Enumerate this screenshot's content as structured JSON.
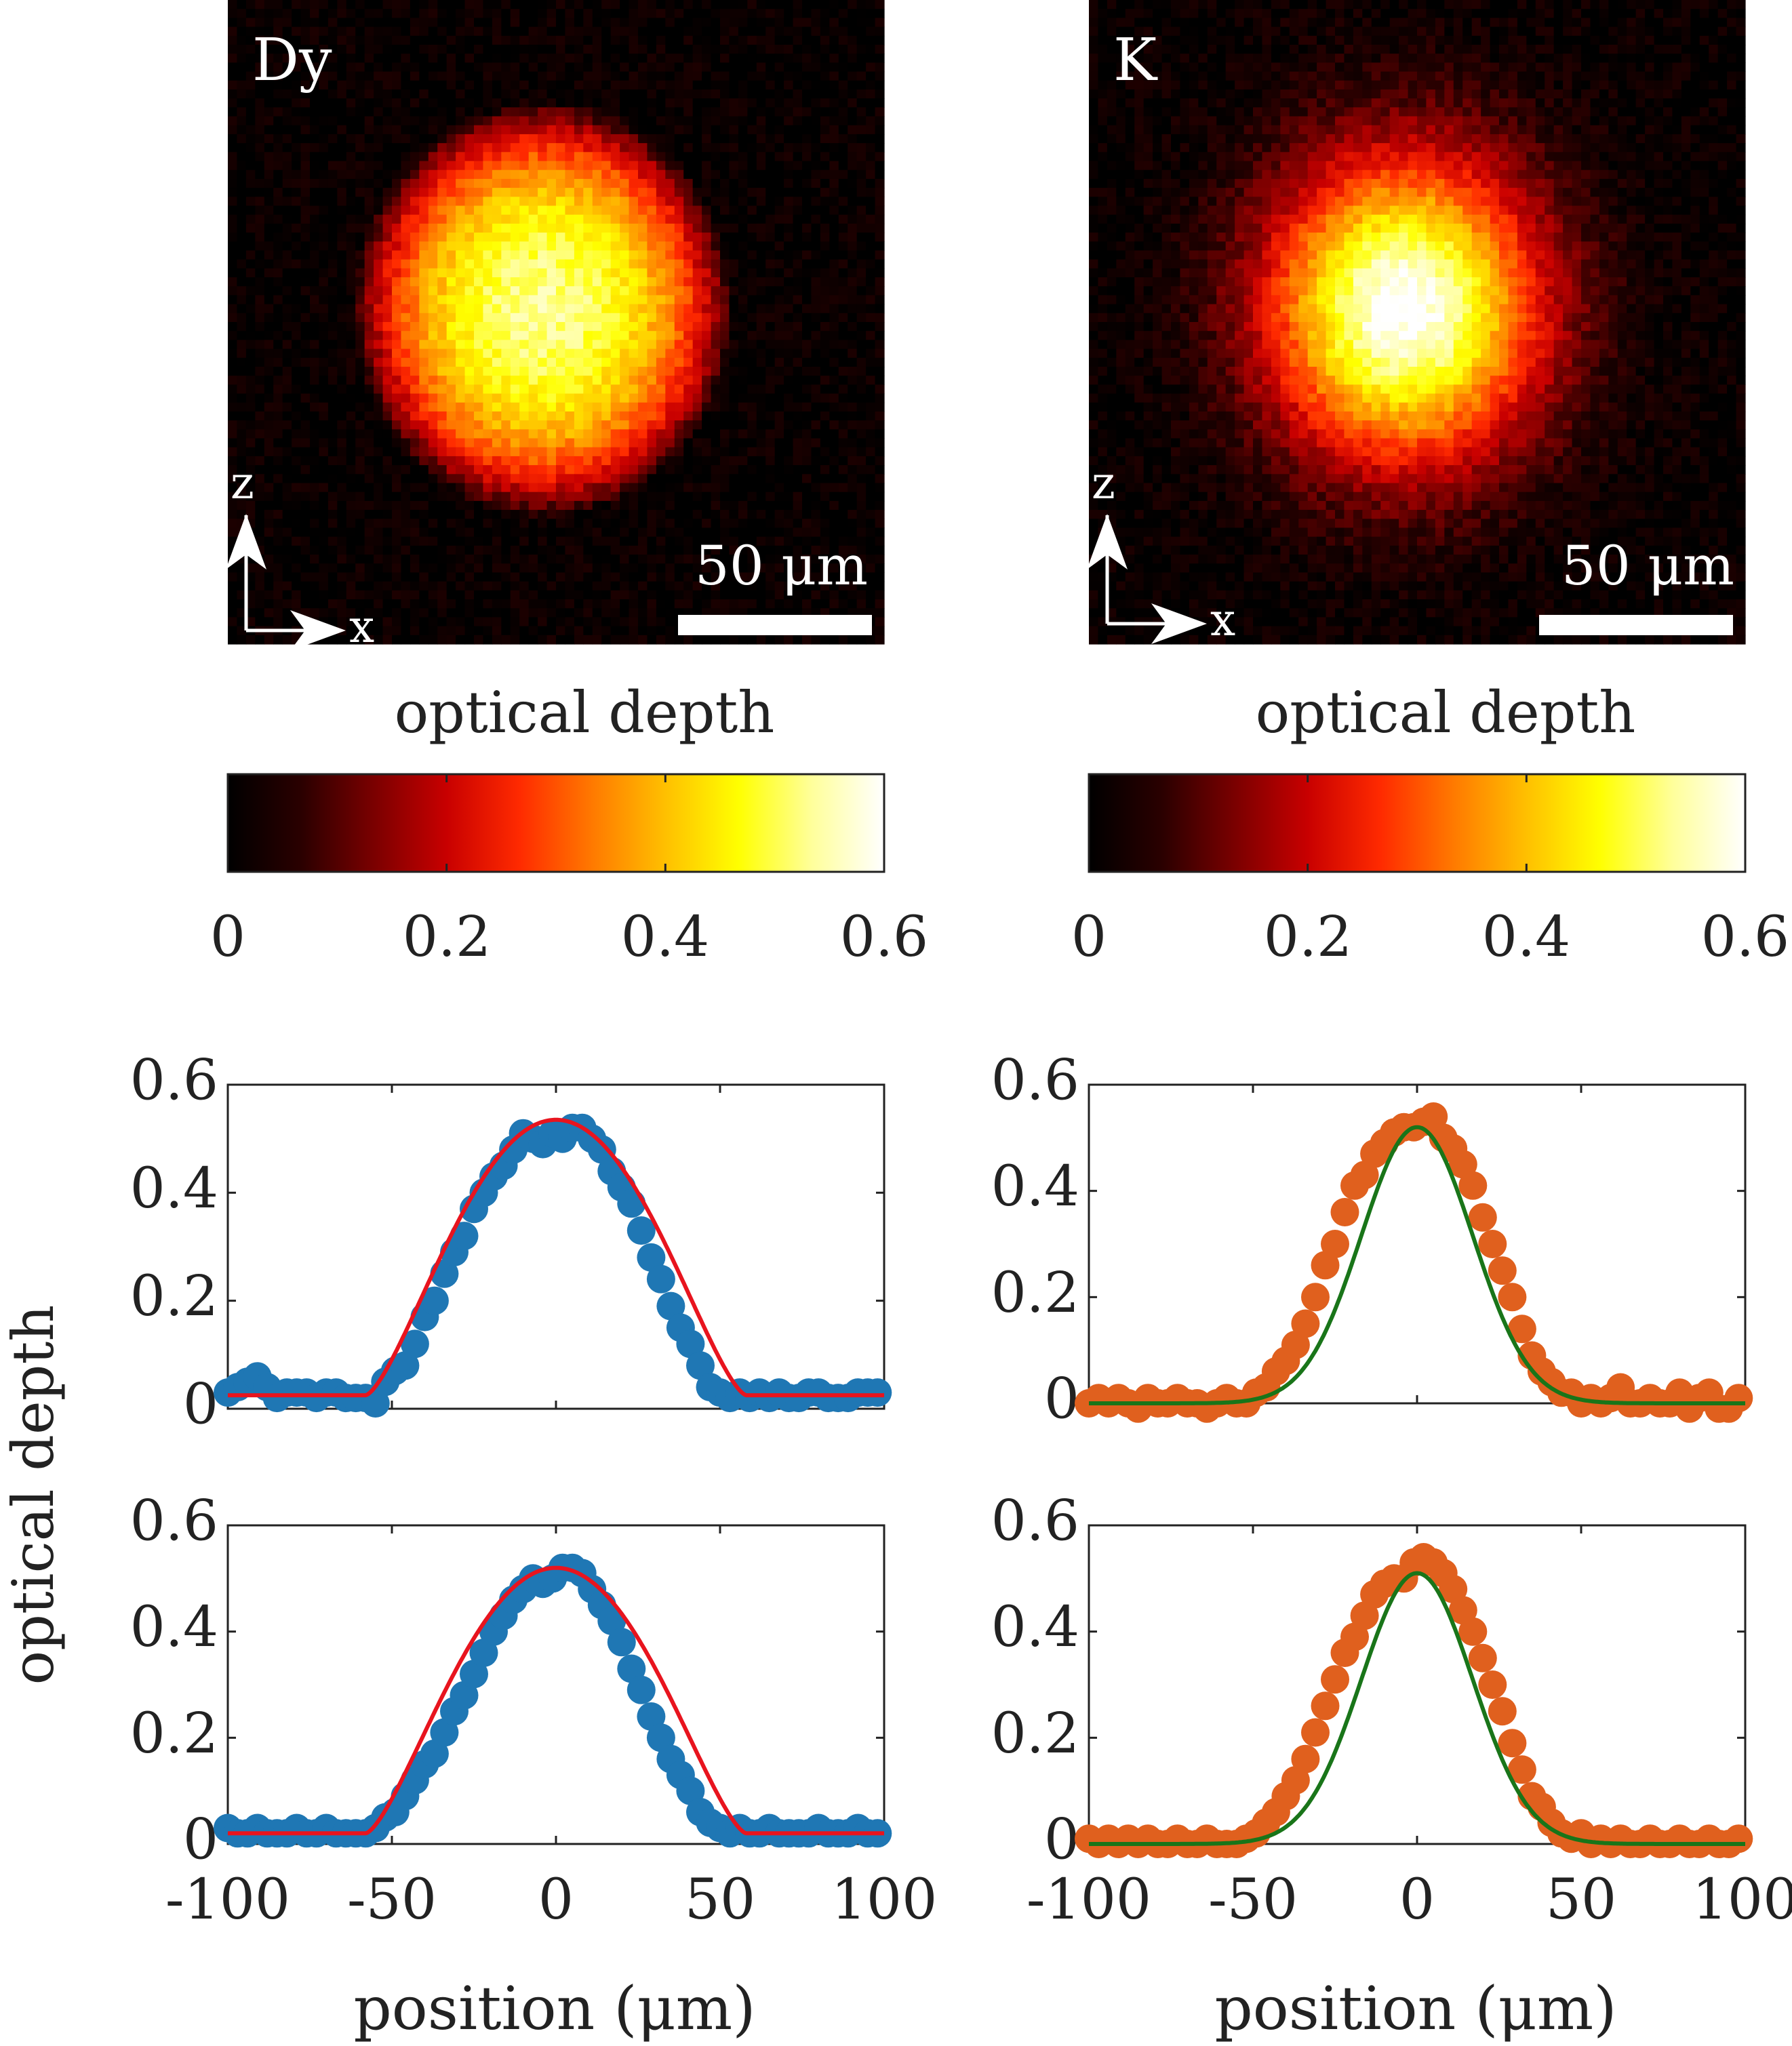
{
  "figure": {
    "y_shared_label": "optical depth",
    "x_shared_label": "position (μm)"
  },
  "colormap_stops": [
    "#000000",
    "#2a0000",
    "#7a0000",
    "#c80000",
    "#ff2a00",
    "#ff7a00",
    "#ffc000",
    "#ffff00",
    "#ffff9a",
    "#ffffff"
  ],
  "images": [
    {
      "species": "Dy",
      "peak_od": 0.52,
      "cloud_center": [
        0.48,
        0.48
      ],
      "cloud_sigma": [
        0.18,
        0.2
      ],
      "cloud_flat_top": true,
      "axis_z_label": "z",
      "axis_x_label": "x",
      "scalebar_label": "50 μm",
      "colorbar": {
        "title": "optical depth",
        "ticks": [
          "0",
          "0.2",
          "0.4",
          "0.6"
        ],
        "range": [
          0,
          0.6
        ]
      }
    },
    {
      "species": "K",
      "peak_od": 0.6,
      "cloud_center": [
        0.48,
        0.48
      ],
      "cloud_sigma": [
        0.14,
        0.16
      ],
      "cloud_flat_top": false,
      "axis_z_label": "z",
      "axis_x_label": "x",
      "scalebar_label": "50 μm",
      "colorbar": {
        "title": "optical depth",
        "ticks": [
          "0",
          "0.2",
          "0.4",
          "0.6"
        ],
        "range": [
          0,
          0.6
        ]
      }
    }
  ],
  "chart_data": [
    {
      "type": "scatter",
      "panel": "Dy x-profile",
      "xlim": [
        -100,
        100
      ],
      "ylim": [
        0,
        0.6
      ],
      "xticks": [
        "-100",
        "-50",
        "0",
        "50",
        "100"
      ],
      "yticks": [
        "0",
        "0.2",
        "0.4",
        "0.6"
      ],
      "xlabel": "",
      "ylabel": "",
      "marker_color": "#1f77b4",
      "fit_color": "#e8141e",
      "fit": {
        "model": "flat-top",
        "amplitude": 0.51,
        "radius": 58,
        "offset": 0.025
      },
      "x": [
        -100,
        -97,
        -94,
        -91,
        -88,
        -85,
        -82,
        -79,
        -76,
        -73,
        -70,
        -67,
        -64,
        -61,
        -58,
        -55,
        -52,
        -49,
        -46,
        -43,
        -40,
        -37,
        -34,
        -31,
        -28,
        -25,
        -22,
        -19,
        -16,
        -13,
        -10,
        -7,
        -4,
        -1,
        2,
        5,
        8,
        11,
        14,
        17,
        20,
        23,
        26,
        29,
        32,
        35,
        38,
        41,
        44,
        47,
        50,
        53,
        56,
        59,
        62,
        65,
        68,
        71,
        74,
        77,
        80,
        83,
        86,
        89,
        92,
        95,
        98
      ],
      "y": [
        0.03,
        0.04,
        0.05,
        0.06,
        0.04,
        0.02,
        0.03,
        0.03,
        0.03,
        0.02,
        0.03,
        0.03,
        0.02,
        0.02,
        0.02,
        0.01,
        0.05,
        0.07,
        0.08,
        0.12,
        0.17,
        0.2,
        0.25,
        0.29,
        0.32,
        0.37,
        0.4,
        0.43,
        0.45,
        0.48,
        0.51,
        0.5,
        0.49,
        0.51,
        0.5,
        0.52,
        0.52,
        0.5,
        0.48,
        0.44,
        0.41,
        0.38,
        0.33,
        0.28,
        0.24,
        0.19,
        0.15,
        0.12,
        0.08,
        0.04,
        0.03,
        0.02,
        0.03,
        0.02,
        0.03,
        0.02,
        0.03,
        0.02,
        0.02,
        0.03,
        0.03,
        0.02,
        0.02,
        0.02,
        0.03,
        0.03,
        0.03
      ]
    },
    {
      "type": "scatter",
      "panel": "K x-profile",
      "xlim": [
        -100,
        100
      ],
      "ylim": [
        0,
        0.6
      ],
      "xticks": [
        "-100",
        "-50",
        "0",
        "50",
        "100"
      ],
      "yticks": [
        "0",
        "0.2",
        "0.4",
        "0.6"
      ],
      "xlabel": "",
      "ylabel": "",
      "marker_color": "#e0601e",
      "fit_color": "#197519",
      "fit": {
        "model": "gaussian",
        "amplitude": 0.52,
        "sigma": 17,
        "offset": 0.0
      },
      "x": [
        -100,
        -97,
        -94,
        -91,
        -88,
        -85,
        -82,
        -79,
        -76,
        -73,
        -70,
        -67,
        -64,
        -61,
        -58,
        -55,
        -52,
        -49,
        -46,
        -43,
        -40,
        -37,
        -34,
        -31,
        -28,
        -25,
        -22,
        -19,
        -16,
        -13,
        -10,
        -7,
        -4,
        -1,
        2,
        5,
        8,
        11,
        14,
        17,
        20,
        23,
        26,
        29,
        32,
        35,
        38,
        41,
        44,
        47,
        50,
        53,
        56,
        59,
        62,
        65,
        68,
        71,
        74,
        77,
        80,
        83,
        86,
        89,
        92,
        95,
        98
      ],
      "y": [
        0.0,
        0.01,
        0.0,
        0.01,
        0.0,
        -0.01,
        0.01,
        0.0,
        0.0,
        0.01,
        0.0,
        0.0,
        -0.01,
        0.0,
        0.01,
        0.0,
        0.0,
        0.02,
        0.03,
        0.06,
        0.08,
        0.11,
        0.15,
        0.2,
        0.26,
        0.3,
        0.36,
        0.41,
        0.43,
        0.47,
        0.49,
        0.51,
        0.52,
        0.52,
        0.53,
        0.54,
        0.5,
        0.48,
        0.45,
        0.41,
        0.35,
        0.3,
        0.25,
        0.2,
        0.14,
        0.09,
        0.06,
        0.04,
        0.02,
        0.02,
        0.0,
        0.01,
        0.0,
        0.01,
        0.03,
        0.0,
        0.0,
        0.01,
        0.0,
        0.0,
        0.02,
        -0.01,
        0.01,
        0.02,
        -0.01,
        -0.01,
        0.01
      ]
    },
    {
      "type": "scatter",
      "panel": "Dy z-profile",
      "xlim": [
        -100,
        100
      ],
      "ylim": [
        0,
        0.6
      ],
      "xticks": [
        "-100",
        "-50",
        "0",
        "50",
        "100"
      ],
      "yticks": [
        "0",
        "0.2",
        "0.4",
        "0.6"
      ],
      "xlabel": "position (μm)",
      "ylabel": "",
      "marker_color": "#1f77b4",
      "fit_color": "#e8141e",
      "fit": {
        "model": "flat-top",
        "amplitude": 0.5,
        "radius": 58,
        "offset": 0.02
      },
      "x": [
        -100,
        -97,
        -94,
        -91,
        -88,
        -85,
        -82,
        -79,
        -76,
        -73,
        -70,
        -67,
        -64,
        -61,
        -58,
        -55,
        -52,
        -49,
        -46,
        -43,
        -40,
        -37,
        -34,
        -31,
        -28,
        -25,
        -22,
        -19,
        -16,
        -13,
        -10,
        -7,
        -4,
        -1,
        2,
        5,
        8,
        11,
        14,
        17,
        20,
        23,
        26,
        29,
        32,
        35,
        38,
        41,
        44,
        47,
        50,
        53,
        56,
        59,
        62,
        65,
        68,
        71,
        74,
        77,
        80,
        83,
        86,
        89,
        92,
        95,
        98
      ],
      "y": [
        0.03,
        0.02,
        0.02,
        0.03,
        0.02,
        0.02,
        0.02,
        0.03,
        0.02,
        0.02,
        0.03,
        0.02,
        0.02,
        0.02,
        0.02,
        0.03,
        0.05,
        0.06,
        0.09,
        0.12,
        0.15,
        0.17,
        0.21,
        0.25,
        0.28,
        0.32,
        0.36,
        0.4,
        0.43,
        0.46,
        0.48,
        0.5,
        0.49,
        0.5,
        0.52,
        0.52,
        0.51,
        0.48,
        0.45,
        0.42,
        0.38,
        0.33,
        0.29,
        0.24,
        0.2,
        0.16,
        0.13,
        0.1,
        0.06,
        0.04,
        0.03,
        0.02,
        0.03,
        0.02,
        0.02,
        0.03,
        0.02,
        0.02,
        0.02,
        0.02,
        0.03,
        0.02,
        0.02,
        0.02,
        0.03,
        0.02,
        0.02
      ]
    },
    {
      "type": "scatter",
      "panel": "K z-profile",
      "xlim": [
        -100,
        100
      ],
      "ylim": [
        0,
        0.6
      ],
      "xticks": [
        "-100",
        "-50",
        "0",
        "50",
        "100"
      ],
      "yticks": [
        "0",
        "0.2",
        "0.4",
        "0.6"
      ],
      "xlabel": "position (μm)",
      "ylabel": "",
      "marker_color": "#e0601e",
      "fit_color": "#197519",
      "fit": {
        "model": "gaussian",
        "amplitude": 0.51,
        "sigma": 17,
        "offset": 0.0
      },
      "x": [
        -100,
        -97,
        -94,
        -91,
        -88,
        -85,
        -82,
        -79,
        -76,
        -73,
        -70,
        -67,
        -64,
        -61,
        -58,
        -55,
        -52,
        -49,
        -46,
        -43,
        -40,
        -37,
        -34,
        -31,
        -28,
        -25,
        -22,
        -19,
        -16,
        -13,
        -10,
        -7,
        -4,
        -1,
        2,
        5,
        8,
        11,
        14,
        17,
        20,
        23,
        26,
        29,
        32,
        35,
        38,
        41,
        44,
        47,
        50,
        53,
        56,
        59,
        62,
        65,
        68,
        71,
        74,
        77,
        80,
        83,
        86,
        89,
        92,
        95,
        98
      ],
      "y": [
        0.01,
        0.0,
        0.01,
        0.0,
        0.01,
        0.0,
        0.01,
        0.0,
        0.0,
        0.01,
        0.0,
        0.0,
        0.01,
        0.0,
        0.0,
        0.0,
        0.01,
        0.02,
        0.04,
        0.06,
        0.09,
        0.12,
        0.16,
        0.21,
        0.26,
        0.31,
        0.36,
        0.39,
        0.43,
        0.47,
        0.49,
        0.5,
        0.5,
        0.53,
        0.54,
        0.53,
        0.51,
        0.48,
        0.44,
        0.4,
        0.35,
        0.3,
        0.25,
        0.19,
        0.14,
        0.09,
        0.07,
        0.04,
        0.02,
        0.01,
        0.02,
        0.0,
        0.01,
        0.0,
        0.01,
        0.0,
        0.0,
        0.01,
        0.0,
        0.0,
        0.01,
        0.0,
        0.0,
        0.01,
        0.0,
        0.0,
        0.01
      ]
    }
  ]
}
